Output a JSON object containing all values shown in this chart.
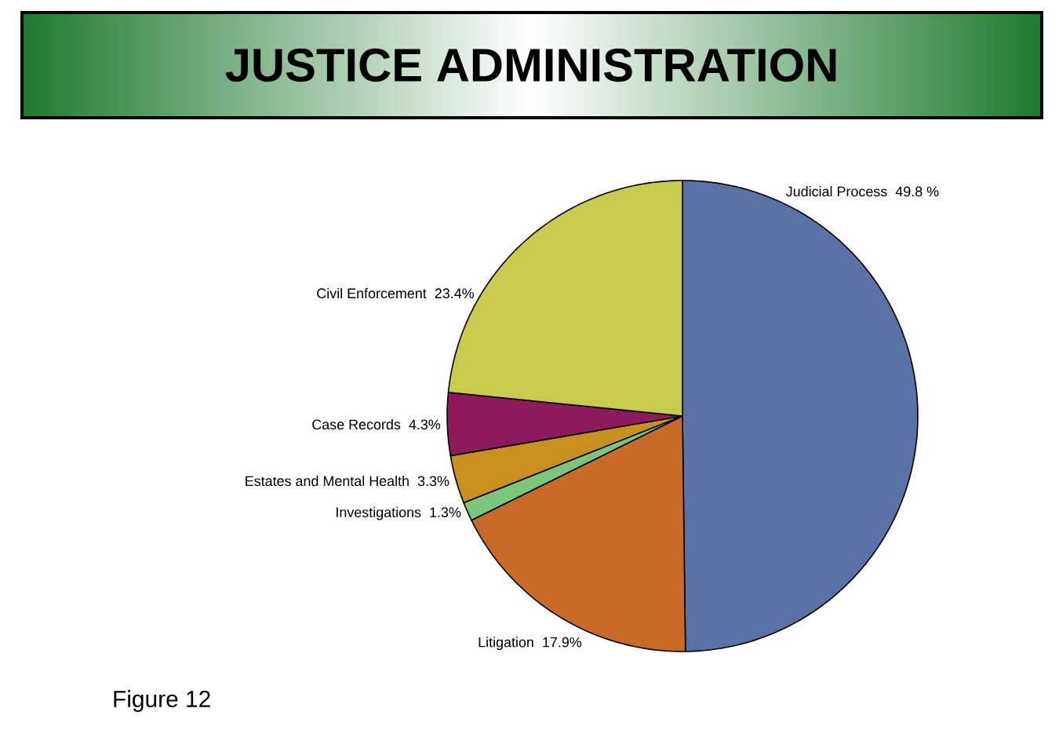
{
  "chart_data": {
    "type": "pie",
    "title": "JUSTICE ADMINISTRATION",
    "categories": [
      "Judicial Process",
      "Litigation",
      "Investigations",
      "Estates and Mental Health",
      "Case Records",
      "Civil Enforcement"
    ],
    "values": [
      49.8,
      17.9,
      1.3,
      3.3,
      4.3,
      23.4
    ],
    "value_labels": [
      "49.8 %",
      "17.9%",
      "1.3%",
      "3.3%",
      "4.3%",
      "23.4%"
    ],
    "colors": [
      "#5b72a6",
      "#c86a28",
      "#7cc67c",
      "#c8901e",
      "#8c1a5c",
      "#c8cc4c"
    ],
    "annotations": [
      "Figure 12"
    ]
  }
}
